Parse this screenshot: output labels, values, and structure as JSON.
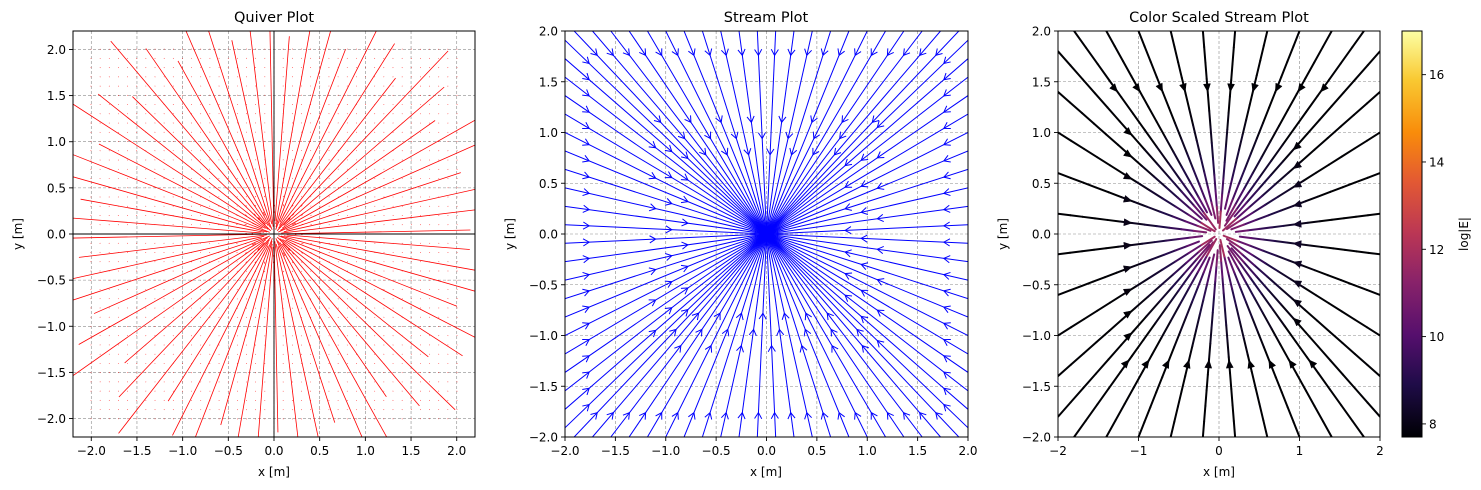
{
  "chart_data": [
    {
      "type": "quiver",
      "title": "Quiver Plot",
      "xlabel": "x [m]",
      "ylabel": "y [m]",
      "xlim": [
        -2.2,
        2.2
      ],
      "ylim": [
        -2.2,
        2.2
      ],
      "xticks": [
        -2.0,
        -1.5,
        -1.0,
        -0.5,
        0.0,
        0.5,
        1.0,
        1.5,
        2.0
      ],
      "yticks": [
        -2.0,
        -1.5,
        -1.0,
        -0.5,
        0.0,
        0.5,
        1.0,
        1.5,
        2.0
      ],
      "xtick_labels": [
        "−2.0",
        "−1.5",
        "−1.0",
        "−0.5",
        "0.0",
        "0.5",
        "1.0",
        "1.5",
        "2.0"
      ],
      "ytick_labels": [
        "−2.0",
        "−1.5",
        "−1.0",
        "−0.5",
        "0.0",
        "0.5",
        "1.0",
        "1.5",
        "2.0"
      ],
      "grid": true,
      "color": "#ff0000",
      "field": "radial-outward",
      "sources": [
        [
          0,
          0
        ]
      ],
      "grid_range": [
        -2,
        2
      ]
    },
    {
      "type": "streamplot",
      "title": "Stream Plot",
      "xlabel": "x [m]",
      "ylabel": "y [m]",
      "xlim": [
        -2.0,
        2.0
      ],
      "ylim": [
        -2.0,
        2.0
      ],
      "xticks": [
        -2.0,
        -1.5,
        -1.0,
        -0.5,
        0.0,
        0.5,
        1.0,
        1.5,
        2.0
      ],
      "yticks": [
        -2.0,
        -1.5,
        -1.0,
        -0.5,
        0.0,
        0.5,
        1.0,
        1.5,
        2.0
      ],
      "xtick_labels": [
        "−2.0",
        "−1.5",
        "−1.0",
        "−0.5",
        "0.0",
        "0.5",
        "1.0",
        "1.5",
        "2.0"
      ],
      "ytick_labels": [
        "−2.0",
        "−1.5",
        "−1.0",
        "−0.5",
        "0.0",
        "0.5",
        "1.0",
        "1.5",
        "2.0"
      ],
      "grid": true,
      "color": "#0000ff",
      "field": "radial-inward",
      "sinks": [
        [
          0,
          0
        ]
      ]
    },
    {
      "type": "streamplot",
      "title": "Color Scaled Stream Plot",
      "xlabel": "x [m]",
      "ylabel": "y [m]",
      "xlim": [
        -2,
        2
      ],
      "ylim": [
        -2,
        2
      ],
      "xticks": [
        -2,
        -1,
        0,
        1,
        2
      ],
      "yticks": [
        -2.0,
        -1.5,
        -1.0,
        -0.5,
        0.0,
        0.5,
        1.0,
        1.5,
        2.0
      ],
      "xtick_labels": [
        "−2",
        "−1",
        "0",
        "1",
        "2"
      ],
      "ytick_labels": [
        "−2.0",
        "−1.5",
        "−1.0",
        "−0.5",
        "0.0",
        "0.5",
        "1.0",
        "1.5",
        "2.0"
      ],
      "grid": true,
      "field": "radial-inward",
      "sinks": [
        [
          0,
          0
        ]
      ],
      "colormap": "inferno",
      "colorbar": {
        "label": "log|E|",
        "range": [
          7.7,
          17
        ],
        "ticks": [
          8,
          10,
          12,
          14,
          16
        ],
        "tick_labels": [
          "8",
          "10",
          "12",
          "14",
          "16"
        ]
      }
    }
  ]
}
